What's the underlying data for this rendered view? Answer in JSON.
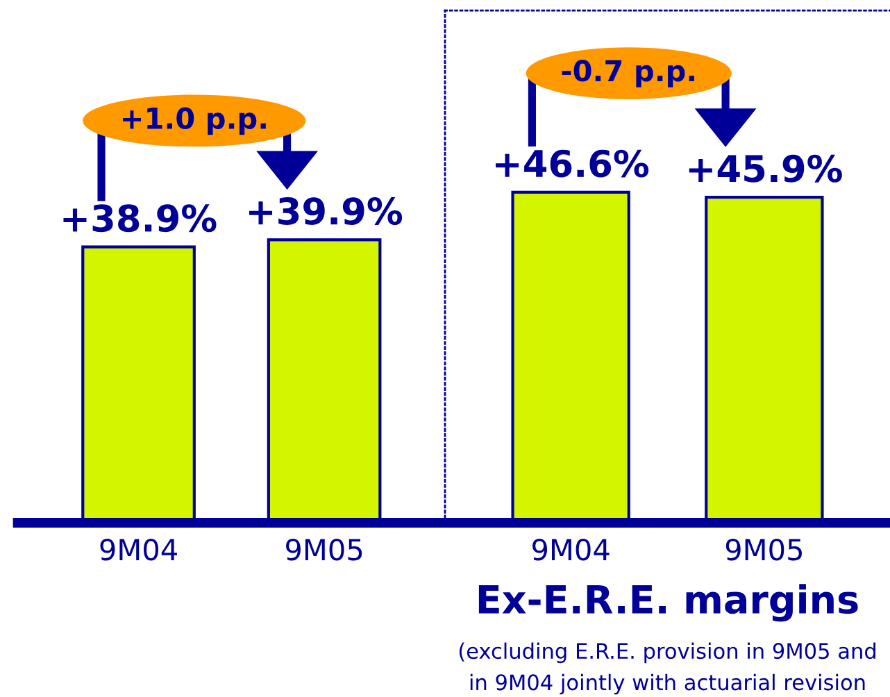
{
  "chart_data": [
    {
      "type": "bar",
      "categories": [
        "9M04",
        "9M05"
      ],
      "values": [
        38.9,
        39.9
      ],
      "value_labels": [
        "+38.9%",
        "+39.9%"
      ],
      "color": "#d4f500",
      "annotations": [
        "+1.0 p.p."
      ],
      "grid": false,
      "legend": false
    },
    {
      "type": "bar",
      "categories": [
        "9M04",
        "9M05"
      ],
      "values": [
        46.6,
        45.9
      ],
      "value_labels": [
        "+46.6%",
        "+45.9%"
      ],
      "color": "#d4f500",
      "annotations": [
        "-0.7 p.p.",
        "Ex-E.R.E. margins",
        "(excluding E.R.E. provision in 9M05 and",
        "in 9M04 jointly with actuarial revision"
      ],
      "grid": false,
      "legend": false
    }
  ]
}
